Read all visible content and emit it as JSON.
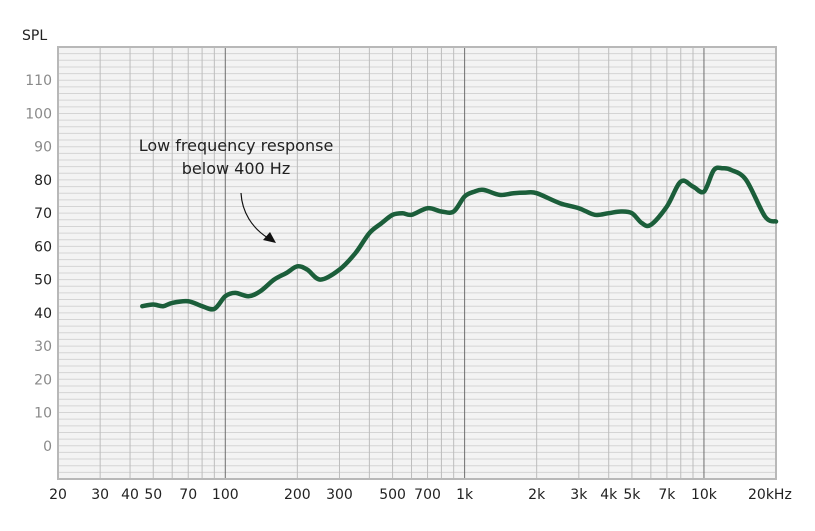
{
  "chart_data": {
    "type": "line",
    "title": "",
    "ylabel": "SPL",
    "xlabel": "",
    "xscale": "log",
    "xlim": [
      20,
      20000
    ],
    "ylim": [
      -10,
      120
    ],
    "grid": true,
    "x_tick_labels": [
      {
        "value": 20,
        "label": "20"
      },
      {
        "value": 30,
        "label": "30"
      },
      {
        "value": 40,
        "label": "40"
      },
      {
        "value": 50,
        "label": "50"
      },
      {
        "value": 70,
        "label": "70"
      },
      {
        "value": 100,
        "label": "100"
      },
      {
        "value": 200,
        "label": "200"
      },
      {
        "value": 300,
        "label": "300"
      },
      {
        "value": 500,
        "label": "500"
      },
      {
        "value": 700,
        "label": "700"
      },
      {
        "value": 1000,
        "label": "1k"
      },
      {
        "value": 2000,
        "label": "2k"
      },
      {
        "value": 3000,
        "label": "3k"
      },
      {
        "value": 4000,
        "label": "4k"
      },
      {
        "value": 5000,
        "label": "5k"
      },
      {
        "value": 7000,
        "label": "7k"
      },
      {
        "value": 10000,
        "label": "10k"
      },
      {
        "value": 20000,
        "label": "20kHz"
      }
    ],
    "y_tick_labels": [
      {
        "value": 0,
        "label": "0"
      },
      {
        "value": 10,
        "label": "10"
      },
      {
        "value": 20,
        "label": "20"
      },
      {
        "value": 30,
        "label": "30"
      },
      {
        "value": 40,
        "label": "40"
      },
      {
        "value": 50,
        "label": "50"
      },
      {
        "value": 60,
        "label": "60"
      },
      {
        "value": 70,
        "label": "70"
      },
      {
        "value": 80,
        "label": "80"
      },
      {
        "value": 90,
        "label": "90"
      },
      {
        "value": 100,
        "label": "100"
      },
      {
        "value": 110,
        "label": "110"
      }
    ],
    "series": [
      {
        "color": "#1b5e3a",
        "x": [
          45,
          50,
          55,
          60,
          70,
          80,
          90,
          100,
          110,
          125,
          140,
          160,
          180,
          200,
          220,
          250,
          300,
          350,
          400,
          450,
          500,
          550,
          600,
          700,
          800,
          900,
          1000,
          1100,
          1200,
          1400,
          1600,
          1800,
          2000,
          2500,
          3000,
          3500,
          4000,
          4500,
          5000,
          5500,
          6000,
          7000,
          8000,
          9000,
          10000,
          11000,
          12000,
          13000,
          15000,
          18000,
          20000
        ],
        "y": [
          42,
          42.5,
          42,
          43,
          43.5,
          42,
          41.2,
          45,
          46,
          45,
          46.5,
          50,
          52,
          54,
          53,
          50,
          53,
          58,
          64,
          67,
          69.5,
          70,
          69.5,
          71.5,
          70.5,
          70.5,
          75,
          76.5,
          77,
          75.5,
          76,
          76.2,
          76,
          73,
          71.5,
          69.5,
          70,
          70.5,
          70,
          67,
          66.5,
          72,
          79.5,
          78,
          76.5,
          83,
          83.5,
          83,
          80,
          69,
          67.5
        ]
      }
    ],
    "annotations": [
      {
        "text_lines": [
          "Low frequency response",
          "below 400 Hz"
        ]
      }
    ]
  }
}
